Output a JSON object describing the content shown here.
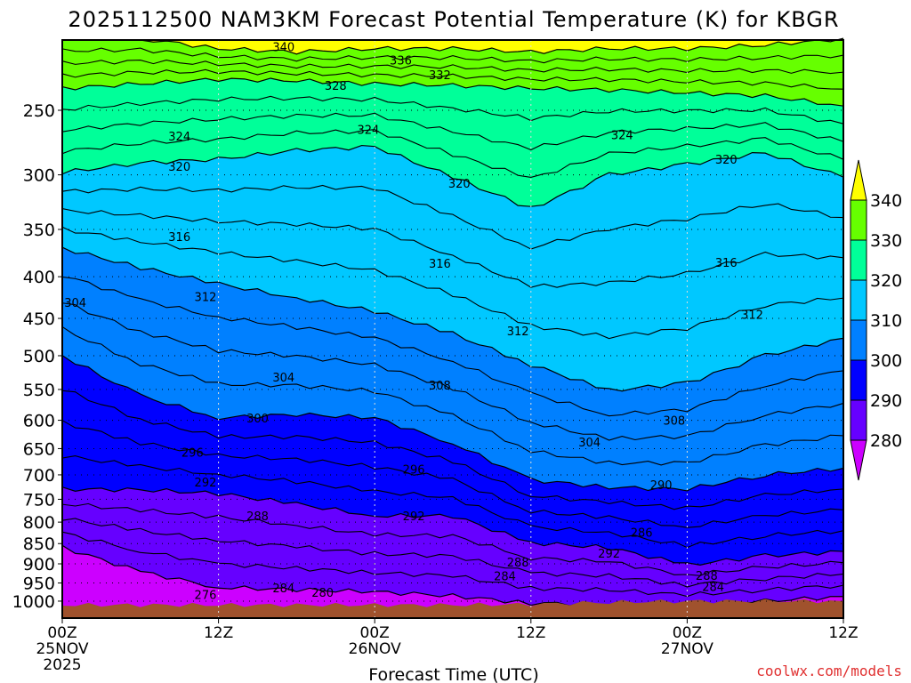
{
  "chart_data": {
    "type": "heatmap",
    "title": "2025112500 NAM3KM Forecast Potential Temperature (K) for KBGR",
    "xlabel": "Forecast Time (UTC)",
    "ylabel": "",
    "credit": "coolwx.com/models",
    "x_range_hours": [
      0,
      60
    ],
    "y_range_hPa": [
      205,
      1049
    ],
    "y_scale": "log",
    "y_ticks": [
      250,
      300,
      350,
      400,
      450,
      500,
      550,
      600,
      650,
      700,
      750,
      800,
      850,
      900,
      950,
      1000
    ],
    "x_ticks": [
      {
        "hour": 0,
        "lines": [
          "00Z",
          "25NOV",
          "2025"
        ]
      },
      {
        "hour": 12,
        "lines": [
          "12Z"
        ]
      },
      {
        "hour": 24,
        "lines": [
          "00Z",
          "26NOV"
        ]
      },
      {
        "hour": 36,
        "lines": [
          "12Z"
        ]
      },
      {
        "hour": 48,
        "lines": [
          "00Z",
          "27NOV"
        ]
      },
      {
        "hour": 60,
        "lines": [
          "12Z"
        ]
      }
    ],
    "grid": true,
    "colorbar": {
      "placement": "right",
      "levels": [
        280,
        290,
        300,
        310,
        320,
        330,
        340
      ],
      "labels": [
        "280",
        "290",
        "300",
        "310",
        "320",
        "330",
        "340"
      ],
      "colors": [
        "#cc00ff",
        "#6600ff",
        "#0000ff",
        "#0080ff",
        "#00c8ff",
        "#00ff99",
        "#66ff00",
        "#ffff00"
      ]
    },
    "ground_color": "#a0522d",
    "hours": [
      0,
      6,
      12,
      18,
      24,
      30,
      36,
      42,
      48,
      54,
      60
    ],
    "isentrope_pressure_hPa": [
      {
        "theta": 340,
        "p": [
          204,
          204,
          210,
          212,
          210,
          210,
          212,
          210,
          210,
          208,
          204
        ]
      },
      {
        "theta": 330,
        "p": [
          235,
          232,
          229,
          230,
          232,
          233,
          235,
          236,
          238,
          240,
          247
        ]
      },
      {
        "theta": 320,
        "p": [
          298,
          290,
          287,
          280,
          277,
          302,
          330,
          300,
          291,
          282,
          302
        ]
      },
      {
        "theta": 310,
        "p": [
          369,
          390,
          408,
          425,
          441,
          470,
          513,
          552,
          540,
          500,
          476
        ]
      },
      {
        "theta": 300,
        "p": [
          500,
          560,
          596,
          590,
          596,
          640,
          710,
          725,
          729,
          700,
          687
        ]
      },
      {
        "theta": 290,
        "p": [
          729,
          730,
          738,
          760,
          786,
          786,
          848,
          860,
          903,
          880,
          869
        ]
      },
      {
        "theta": 280,
        "p": [
          859,
          920,
          962,
          968,
          974,
          985,
          1006,
          1008,
          1011,
          1000,
          987
        ]
      }
    ],
    "surface_pressure_hPa": [
      1011,
      1011,
      1011,
      1011,
      1011,
      1011,
      1009,
      1003,
      1000,
      1000,
      1000
    ],
    "contour_labels": [
      {
        "text": "340",
        "hour": 17,
        "p": 209
      },
      {
        "text": "336",
        "hour": 26,
        "p": 217
      },
      {
        "text": "332",
        "hour": 29,
        "p": 226
      },
      {
        "text": "328",
        "hour": 21,
        "p": 233
      },
      {
        "text": "324",
        "hour": 9,
        "p": 269
      },
      {
        "text": "324",
        "hour": 23.5,
        "p": 264
      },
      {
        "text": "324",
        "hour": 43,
        "p": 268
      },
      {
        "text": "320",
        "hour": 9,
        "p": 293
      },
      {
        "text": "320",
        "hour": 30.5,
        "p": 307
      },
      {
        "text": "320",
        "hour": 51,
        "p": 287
      },
      {
        "text": "316",
        "hour": 9,
        "p": 357
      },
      {
        "text": "316",
        "hour": 29,
        "p": 385
      },
      {
        "text": "316",
        "hour": 51,
        "p": 384
      },
      {
        "text": "312",
        "hour": 11,
        "p": 423
      },
      {
        "text": "312",
        "hour": 35,
        "p": 466
      },
      {
        "text": "312",
        "hour": 53,
        "p": 445
      },
      {
        "text": "304",
        "hour": 1,
        "p": 430
      },
      {
        "text": "304",
        "hour": 17,
        "p": 531
      },
      {
        "text": "308",
        "hour": 29,
        "p": 543
      },
      {
        "text": "308",
        "hour": 47,
        "p": 600
      },
      {
        "text": "304",
        "hour": 40.5,
        "p": 638
      },
      {
        "text": "300",
        "hour": 15,
        "p": 596
      },
      {
        "text": "296",
        "hour": 10,
        "p": 657
      },
      {
        "text": "296",
        "hour": 27,
        "p": 689
      },
      {
        "text": "292",
        "hour": 11,
        "p": 714
      },
      {
        "text": "292",
        "hour": 27,
        "p": 786
      },
      {
        "text": "288",
        "hour": 15,
        "p": 786
      },
      {
        "text": "290",
        "hour": 46,
        "p": 720
      },
      {
        "text": "286",
        "hour": 44.5,
        "p": 823
      },
      {
        "text": "292",
        "hour": 42,
        "p": 873
      },
      {
        "text": "288",
        "hour": 35,
        "p": 895
      },
      {
        "text": "284",
        "hour": 34,
        "p": 931
      },
      {
        "text": "288",
        "hour": 49.5,
        "p": 930
      },
      {
        "text": "284",
        "hour": 50,
        "p": 959
      },
      {
        "text": "284",
        "hour": 17,
        "p": 963
      },
      {
        "text": "280",
        "hour": 20,
        "p": 975
      },
      {
        "text": "276",
        "hour": 11,
        "p": 981
      }
    ]
  }
}
